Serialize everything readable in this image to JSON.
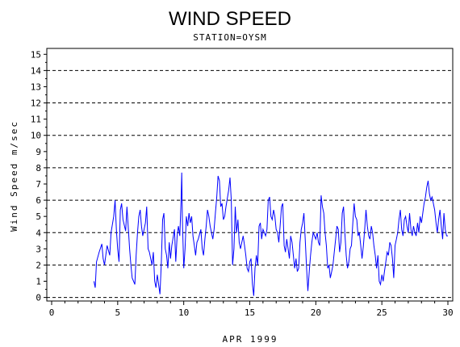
{
  "chart_data": {
    "type": "line",
    "title": "WIND SPEED",
    "subtitle": "STATION=OYSM",
    "xlabel": "APR 1999",
    "ylabel": "Wind Speed m/sec",
    "xlim": [
      0,
      30
    ],
    "ylim": [
      0,
      15.5
    ],
    "xticks": [
      0,
      5,
      10,
      15,
      20,
      25,
      30
    ],
    "yticks": [
      0,
      1,
      2,
      3,
      4,
      5,
      6,
      7,
      8,
      9,
      10,
      11,
      12,
      13,
      14,
      15
    ],
    "reference_lines": [
      0,
      2,
      4,
      6,
      8,
      10,
      12,
      14
    ],
    "grid": "dashed horizontal at even values",
    "colors": {
      "line": "#0000ff",
      "axis": "#000000"
    },
    "series": [
      {
        "points": [
          [
            3.2,
            1.0
          ],
          [
            3.3,
            0.6
          ],
          [
            3.4,
            2.2
          ],
          [
            3.6,
            2.8
          ],
          [
            3.8,
            3.3
          ],
          [
            3.9,
            2.4
          ],
          [
            4.0,
            2.0
          ],
          [
            4.2,
            3.2
          ],
          [
            4.4,
            2.6
          ],
          [
            4.5,
            4.0
          ],
          [
            4.7,
            5.0
          ],
          [
            4.8,
            6.0
          ],
          [
            4.9,
            4.2
          ],
          [
            5.0,
            3.0
          ],
          [
            5.1,
            2.2
          ],
          [
            5.2,
            5.4
          ],
          [
            5.3,
            5.8
          ],
          [
            5.4,
            4.8
          ],
          [
            5.6,
            4.1
          ],
          [
            5.7,
            5.6
          ],
          [
            5.9,
            3.0
          ],
          [
            6.0,
            2.0
          ],
          [
            6.1,
            1.2
          ],
          [
            6.2,
            1.0
          ],
          [
            6.3,
            0.8
          ],
          [
            6.4,
            2.6
          ],
          [
            6.5,
            4.0
          ],
          [
            6.6,
            5.0
          ],
          [
            6.7,
            5.4
          ],
          [
            6.8,
            4.4
          ],
          [
            6.9,
            3.8
          ],
          [
            7.1,
            4.6
          ],
          [
            7.2,
            5.6
          ],
          [
            7.3,
            3.0
          ],
          [
            7.4,
            2.8
          ],
          [
            7.6,
            2.0
          ],
          [
            7.7,
            2.8
          ],
          [
            7.8,
            1.0
          ],
          [
            7.9,
            0.6
          ],
          [
            8.0,
            1.4
          ],
          [
            8.2,
            0.2
          ],
          [
            8.3,
            2.0
          ],
          [
            8.4,
            4.8
          ],
          [
            8.5,
            5.2
          ],
          [
            8.6,
            3.0
          ],
          [
            8.7,
            2.6
          ],
          [
            8.8,
            1.8
          ],
          [
            8.9,
            3.4
          ],
          [
            9.0,
            2.4
          ],
          [
            9.1,
            3.2
          ],
          [
            9.3,
            4.2
          ],
          [
            9.4,
            2.2
          ],
          [
            9.5,
            3.8
          ],
          [
            9.6,
            4.4
          ],
          [
            9.7,
            3.8
          ],
          [
            9.8,
            6.0
          ],
          [
            9.85,
            7.7
          ],
          [
            9.9,
            4.8
          ],
          [
            10.0,
            1.8
          ],
          [
            10.1,
            3.0
          ],
          [
            10.2,
            5.0
          ],
          [
            10.3,
            4.4
          ],
          [
            10.4,
            5.2
          ],
          [
            10.5,
            4.6
          ],
          [
            10.6,
            5.0
          ],
          [
            10.7,
            3.8
          ],
          [
            10.8,
            3.2
          ],
          [
            10.9,
            2.6
          ],
          [
            11.0,
            3.4
          ],
          [
            11.1,
            3.6
          ],
          [
            11.3,
            4.2
          ],
          [
            11.4,
            3.0
          ],
          [
            11.5,
            2.6
          ],
          [
            11.6,
            3.6
          ],
          [
            11.7,
            4.4
          ],
          [
            11.8,
            5.4
          ],
          [
            11.9,
            5.0
          ],
          [
            12.0,
            4.4
          ],
          [
            12.2,
            3.6
          ],
          [
            12.3,
            4.2
          ],
          [
            12.4,
            5.2
          ],
          [
            12.5,
            6.2
          ],
          [
            12.6,
            7.5
          ],
          [
            12.7,
            7.2
          ],
          [
            12.8,
            5.6
          ],
          [
            12.9,
            5.8
          ],
          [
            13.0,
            4.8
          ],
          [
            13.1,
            5.0
          ],
          [
            13.2,
            5.6
          ],
          [
            13.4,
            6.6
          ],
          [
            13.5,
            7.4
          ],
          [
            13.6,
            6.0
          ],
          [
            13.7,
            2.0
          ],
          [
            13.8,
            3.0
          ],
          [
            13.9,
            5.6
          ],
          [
            14.0,
            4.0
          ],
          [
            14.1,
            4.8
          ],
          [
            14.2,
            3.4
          ],
          [
            14.3,
            3.0
          ],
          [
            14.5,
            3.8
          ],
          [
            14.6,
            3.2
          ],
          [
            14.7,
            2.6
          ],
          [
            14.8,
            1.8
          ],
          [
            14.9,
            1.6
          ],
          [
            15.0,
            2.2
          ],
          [
            15.1,
            2.4
          ],
          [
            15.2,
            0.8
          ],
          [
            15.3,
            0.1
          ],
          [
            15.4,
            1.8
          ],
          [
            15.5,
            2.6
          ],
          [
            15.6,
            2.0
          ],
          [
            15.7,
            4.4
          ],
          [
            15.8,
            4.6
          ],
          [
            15.9,
            3.6
          ],
          [
            16.0,
            4.2
          ],
          [
            16.2,
            3.8
          ],
          [
            16.3,
            4.2
          ],
          [
            16.4,
            6.0
          ],
          [
            16.5,
            6.2
          ],
          [
            16.6,
            5.0
          ],
          [
            16.7,
            4.8
          ],
          [
            16.8,
            5.4
          ],
          [
            16.9,
            5.0
          ],
          [
            17.0,
            4.2
          ],
          [
            17.1,
            4.0
          ],
          [
            17.2,
            3.4
          ],
          [
            17.3,
            4.4
          ],
          [
            17.4,
            5.6
          ],
          [
            17.5,
            5.8
          ],
          [
            17.6,
            3.2
          ],
          [
            17.7,
            2.8
          ],
          [
            17.8,
            3.6
          ],
          [
            17.9,
            3.0
          ],
          [
            18.0,
            2.4
          ],
          [
            18.1,
            3.8
          ],
          [
            18.2,
            3.4
          ],
          [
            18.3,
            2.6
          ],
          [
            18.4,
            1.8
          ],
          [
            18.5,
            2.4
          ],
          [
            18.6,
            1.6
          ],
          [
            18.7,
            1.8
          ],
          [
            18.8,
            3.4
          ],
          [
            18.9,
            4.2
          ],
          [
            19.0,
            4.6
          ],
          [
            19.1,
            5.2
          ],
          [
            19.2,
            3.6
          ],
          [
            19.3,
            1.8
          ],
          [
            19.4,
            0.4
          ],
          [
            19.5,
            1.6
          ],
          [
            19.6,
            2.6
          ],
          [
            19.7,
            3.4
          ],
          [
            19.8,
            4.0
          ],
          [
            19.9,
            3.8
          ],
          [
            20.0,
            3.6
          ],
          [
            20.1,
            4.0
          ],
          [
            20.2,
            3.4
          ],
          [
            20.3,
            3.2
          ],
          [
            20.4,
            6.3
          ],
          [
            20.5,
            5.6
          ],
          [
            20.6,
            5.2
          ],
          [
            20.7,
            4.0
          ],
          [
            20.8,
            3.2
          ],
          [
            20.9,
            1.8
          ],
          [
            21.0,
            2.0
          ],
          [
            21.1,
            1.2
          ],
          [
            21.2,
            1.6
          ],
          [
            21.3,
            2.0
          ],
          [
            21.4,
            2.8
          ],
          [
            21.5,
            3.6
          ],
          [
            21.6,
            4.4
          ],
          [
            21.7,
            4.2
          ],
          [
            21.8,
            2.8
          ],
          [
            21.9,
            3.4
          ],
          [
            22.0,
            5.2
          ],
          [
            22.1,
            5.6
          ],
          [
            22.2,
            4.0
          ],
          [
            22.3,
            2.6
          ],
          [
            22.4,
            1.8
          ],
          [
            22.5,
            2.2
          ],
          [
            22.6,
            3.0
          ],
          [
            22.7,
            3.2
          ],
          [
            22.8,
            4.6
          ],
          [
            22.9,
            5.8
          ],
          [
            23.0,
            5.0
          ],
          [
            23.1,
            4.8
          ],
          [
            23.2,
            3.8
          ],
          [
            23.3,
            4.0
          ],
          [
            23.4,
            3.2
          ],
          [
            23.5,
            2.4
          ],
          [
            23.6,
            3.2
          ],
          [
            23.7,
            4.2
          ],
          [
            23.8,
            5.4
          ],
          [
            23.9,
            4.4
          ],
          [
            24.0,
            3.8
          ],
          [
            24.1,
            3.6
          ],
          [
            24.2,
            4.4
          ],
          [
            24.3,
            4.0
          ],
          [
            24.4,
            3.2
          ],
          [
            24.5,
            2.6
          ],
          [
            24.6,
            1.8
          ],
          [
            24.7,
            2.6
          ],
          [
            24.8,
            1.0
          ],
          [
            24.9,
            0.8
          ],
          [
            25.0,
            1.4
          ],
          [
            25.1,
            1.0
          ],
          [
            25.2,
            1.6
          ],
          [
            25.3,
            2.2
          ],
          [
            25.4,
            2.8
          ],
          [
            25.5,
            2.6
          ],
          [
            25.6,
            3.4
          ],
          [
            25.7,
            3.2
          ],
          [
            25.8,
            2.4
          ],
          [
            25.9,
            1.2
          ],
          [
            26.0,
            3.2
          ],
          [
            26.1,
            3.6
          ],
          [
            26.2,
            4.0
          ],
          [
            26.3,
            4.8
          ],
          [
            26.4,
            5.4
          ],
          [
            26.5,
            4.2
          ],
          [
            26.6,
            3.8
          ],
          [
            26.7,
            4.8
          ],
          [
            26.8,
            5.0
          ],
          [
            26.9,
            4.4
          ],
          [
            27.0,
            4.0
          ],
          [
            27.1,
            5.2
          ],
          [
            27.2,
            4.2
          ],
          [
            27.3,
            3.8
          ],
          [
            27.4,
            4.4
          ],
          [
            27.5,
            4.0
          ],
          [
            27.6,
            3.8
          ],
          [
            27.7,
            4.6
          ],
          [
            27.8,
            4.0
          ],
          [
            27.9,
            5.0
          ],
          [
            28.0,
            4.6
          ],
          [
            28.1,
            5.2
          ],
          [
            28.2,
            5.8
          ],
          [
            28.3,
            6.2
          ],
          [
            28.4,
            6.8
          ],
          [
            28.5,
            7.2
          ],
          [
            28.6,
            6.4
          ],
          [
            28.7,
            6.0
          ],
          [
            28.8,
            6.2
          ],
          [
            28.9,
            5.8
          ],
          [
            29.0,
            5.4
          ],
          [
            29.1,
            4.6
          ],
          [
            29.2,
            4.0
          ],
          [
            29.3,
            4.8
          ],
          [
            29.4,
            5.4
          ],
          [
            29.5,
            4.4
          ],
          [
            29.6,
            3.6
          ],
          [
            29.7,
            5.2
          ],
          [
            29.8,
            4.2
          ],
          [
            29.9,
            3.8
          ],
          [
            30.0,
            3.8
          ]
        ]
      }
    ]
  }
}
